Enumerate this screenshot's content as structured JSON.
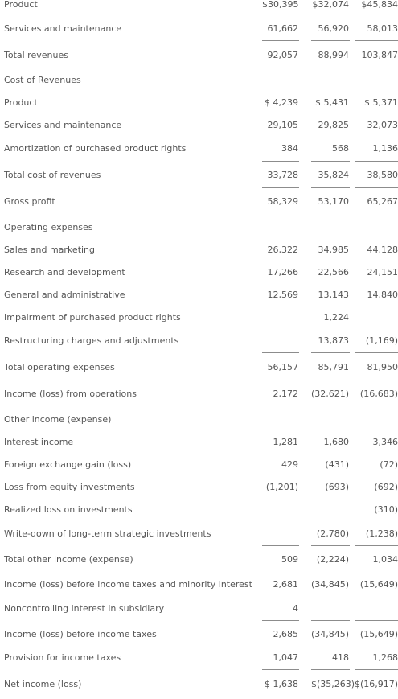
{
  "rows": [
    {
      "label": "Product",
      "v1": "$30,395",
      "v2": "$32,074",
      "v3": "$45,834"
    },
    {
      "label": "Services and maintenance",
      "v1": "61,662",
      "v2": "56,920",
      "v3": "58,013"
    },
    {
      "label": "Total revenues",
      "v1": "92,057",
      "v2": "88,994",
      "v3": "103,847"
    },
    {
      "label": "Cost of Revenues",
      "v1": "",
      "v2": "",
      "v3": ""
    },
    {
      "label": "Product",
      "v1": "$ 4,239",
      "v2": "$ 5,431",
      "v3": "$ 5,371"
    },
    {
      "label": "Services and maintenance",
      "v1": "29,105",
      "v2": "29,825",
      "v3": "32,073"
    },
    {
      "label": "Amortization of purchased product rights",
      "v1": "384",
      "v2": "568",
      "v3": "1,136"
    },
    {
      "label": "Total cost of revenues",
      "v1": "33,728",
      "v2": "35,824",
      "v3": "38,580"
    },
    {
      "label": "Gross profit",
      "v1": "58,329",
      "v2": "53,170",
      "v3": "65,267"
    },
    {
      "label": "Operating expenses",
      "v1": "",
      "v2": "",
      "v3": ""
    },
    {
      "label": "Sales and marketing",
      "v1": "26,322",
      "v2": "34,985",
      "v3": "44,128"
    },
    {
      "label": "Research and development",
      "v1": "17,266",
      "v2": "22,566",
      "v3": "24,151"
    },
    {
      "label": "General and administrative",
      "v1": "12,569",
      "v2": "13,143",
      "v3": "14,840"
    },
    {
      "label": "Impairment of purchased product rights",
      "v1": "",
      "v2": "1,224",
      "v3": ""
    },
    {
      "label": "Restructuring charges and adjustments",
      "v1": "",
      "v2": "13,873",
      "v3": "(1,169)"
    },
    {
      "label": "Total operating expenses",
      "v1": "56,157",
      "v2": "85,791",
      "v3": "81,950"
    },
    {
      "label": "Income (loss) from operations",
      "v1": "2,172",
      "v2": "(32,621)",
      "v3": "(16,683)"
    },
    {
      "label": "Other income (expense)",
      "v1": "",
      "v2": "",
      "v3": ""
    },
    {
      "label": "Interest income",
      "v1": "1,281",
      "v2": "1,680",
      "v3": "3,346"
    },
    {
      "label": "Foreign exchange gain (loss)",
      "v1": "429",
      "v2": "(431)",
      "v3": "(72)"
    },
    {
      "label": "Loss from equity investments",
      "v1": "(1,201)",
      "v2": "(693)",
      "v3": "(692)"
    },
    {
      "label": "Realized loss on investments",
      "v1": "",
      "v2": "",
      "v3": "(310)"
    },
    {
      "label": "Write-down of long-term strategic investments",
      "v1": "",
      "v2": "(2,780)",
      "v3": "(1,238)"
    },
    {
      "label": "Total other income (expense)",
      "v1": "509",
      "v2": "(2,224)",
      "v3": "1,034"
    },
    {
      "label": "Income (loss) before income taxes and minority interest",
      "v1": "2,681",
      "v2": "(34,845)",
      "v3": "(15,649)"
    },
    {
      "label": "Noncontrolling interest in subsidiary",
      "v1": "4",
      "v2": "",
      "v3": ""
    },
    {
      "label": "Income (loss) before income taxes",
      "v1": "2,685",
      "v2": "(34,845)",
      "v3": "(15,649)"
    },
    {
      "label": "Provision for income taxes",
      "v1": "1,047",
      "v2": "418",
      "v3": "1,268"
    },
    {
      "label": "Net income (loss)",
      "v1": "$ 1,638",
      "v2": "$(35,263)",
      "v3": "$(16,917)"
    }
  ]
}
